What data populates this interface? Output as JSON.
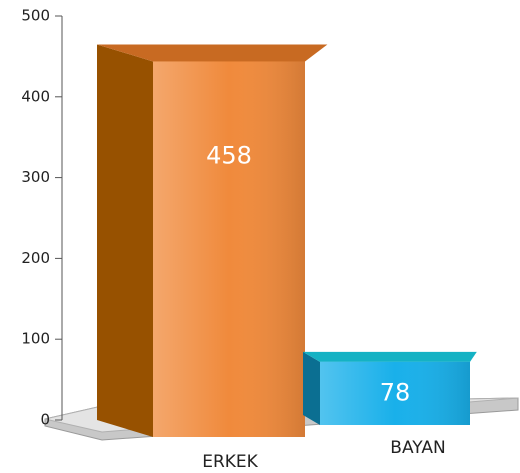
{
  "chart_data": {
    "type": "bar3d",
    "categories": [
      "ERKEK",
      "BAYAN"
    ],
    "values": [
      458,
      78
    ],
    "colors": [
      "#f08a3c",
      "#19b0ea"
    ],
    "ylim": [
      0,
      500
    ],
    "yticks": [
      0,
      100,
      200,
      300,
      400,
      500
    ]
  }
}
